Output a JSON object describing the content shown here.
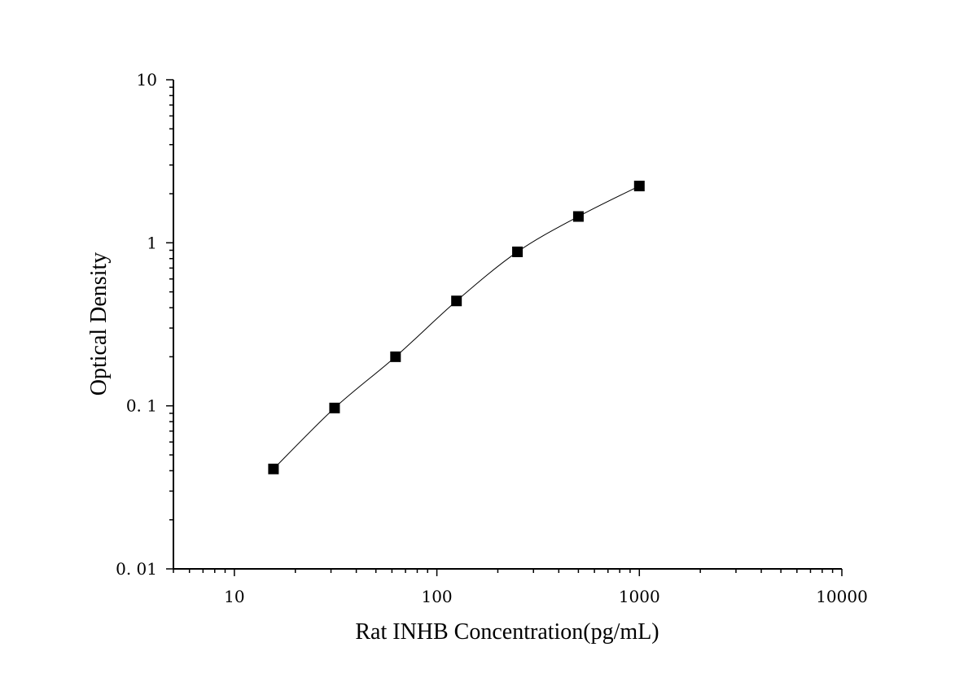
{
  "chart_data": {
    "type": "scatter",
    "title": "",
    "xlabel": "Rat INHB Concentration(pg/mL)",
    "ylabel": "Optical Density",
    "x_scale": "log",
    "y_scale": "log",
    "xlim": [
      5,
      10000
    ],
    "ylim": [
      0.01,
      10
    ],
    "x_tick_labels": [
      "10",
      "100",
      "1000",
      "10000"
    ],
    "x_tick_values": [
      10,
      100,
      1000,
      10000
    ],
    "y_tick_labels": [
      "0. 01",
      "0. 1",
      "1",
      "10"
    ],
    "y_tick_values": [
      0.01,
      0.1,
      1,
      10
    ],
    "grid": false,
    "marker": "square",
    "line": "smooth fit through points",
    "series": [
      {
        "x": [
          15.6,
          31.25,
          62.5,
          125,
          250,
          500,
          1000
        ],
        "y": [
          0.041,
          0.097,
          0.2,
          0.44,
          0.88,
          1.45,
          2.23
        ]
      }
    ]
  }
}
